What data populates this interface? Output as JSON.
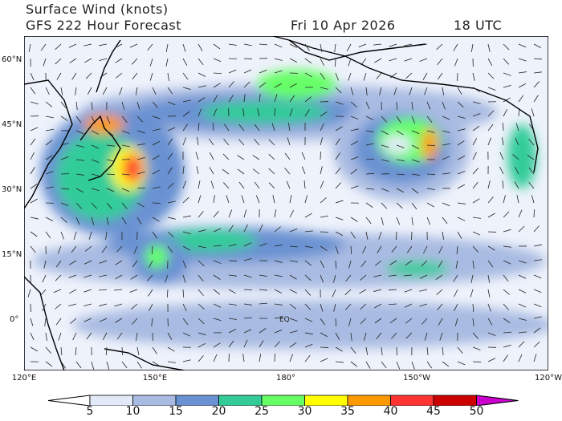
{
  "title": "Surface Wind (knots)",
  "subtitle": "GFS 222 Hour Forecast",
  "valid_date": "Fri 10 Apr 2026",
  "valid_time": "18 UTC",
  "lat_labels": [
    "60°N",
    "45°N",
    "30°N",
    "15°N",
    "0°"
  ],
  "lon_labels": [
    "120°E",
    "150°E",
    "180°",
    "150°W",
    "120°W"
  ],
  "map_annotation": "EQ",
  "colorbar": {
    "levels": [
      "5",
      "10",
      "15",
      "20",
      "25",
      "30",
      "35",
      "40",
      "45",
      "50"
    ],
    "colors": [
      "#ffffff",
      "#e2eaf8",
      "#a9bbe2",
      "#6a92d2",
      "#33cc99",
      "#66ff66",
      "#ffff00",
      "#ff9900",
      "#ff3333",
      "#cc0000",
      "#cc00cc"
    ]
  }
}
